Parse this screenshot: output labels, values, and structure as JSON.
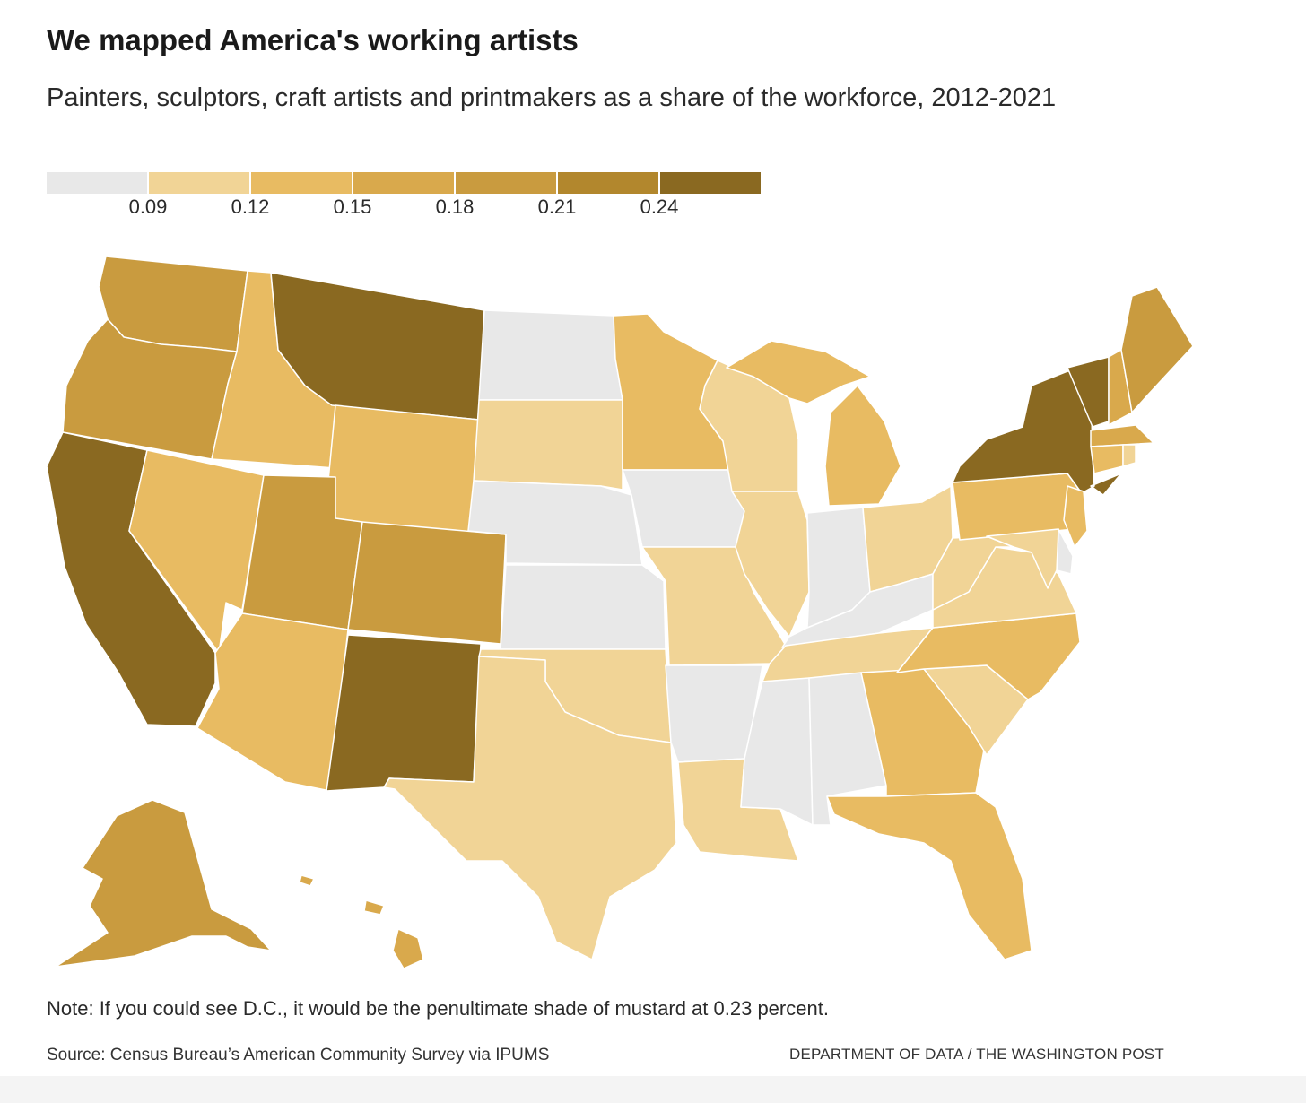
{
  "title": "We mapped America's working artists",
  "subtitle": "Painters, sculptors, craft artists and printmakers as a share of the workforce, 2012-2021",
  "legend": {
    "colors": [
      "#e8e8e8",
      "#f1d496",
      "#e8bb62",
      "#d9a94c",
      "#c99b3f",
      "#b2872d",
      "#8a6921"
    ],
    "ticks": [
      "0.09",
      "0.12",
      "0.15",
      "0.18",
      "0.21",
      "0.24"
    ]
  },
  "states": [
    {
      "name": "WA",
      "bin": 4
    },
    {
      "name": "OR",
      "bin": 4
    },
    {
      "name": "CA",
      "bin": 6
    },
    {
      "name": "ID",
      "bin": 2
    },
    {
      "name": "NV",
      "bin": 2
    },
    {
      "name": "MT",
      "bin": 6
    },
    {
      "name": "WY",
      "bin": 2
    },
    {
      "name": "UT",
      "bin": 4
    },
    {
      "name": "AZ",
      "bin": 2
    },
    {
      "name": "CO",
      "bin": 4
    },
    {
      "name": "NM",
      "bin": 6
    },
    {
      "name": "ND",
      "bin": 0
    },
    {
      "name": "SD",
      "bin": 1
    },
    {
      "name": "NE",
      "bin": 0
    },
    {
      "name": "KS",
      "bin": 0
    },
    {
      "name": "OK",
      "bin": 1
    },
    {
      "name": "TX",
      "bin": 1
    },
    {
      "name": "MN",
      "bin": 2
    },
    {
      "name": "IA",
      "bin": 0
    },
    {
      "name": "MO",
      "bin": 1
    },
    {
      "name": "AR",
      "bin": 0
    },
    {
      "name": "LA",
      "bin": 1
    },
    {
      "name": "WI",
      "bin": 1
    },
    {
      "name": "IL",
      "bin": 1
    },
    {
      "name": "MI",
      "bin": 2
    },
    {
      "name": "IN",
      "bin": 0
    },
    {
      "name": "OH",
      "bin": 1
    },
    {
      "name": "KY",
      "bin": 0
    },
    {
      "name": "TN",
      "bin": 1
    },
    {
      "name": "MS",
      "bin": 0
    },
    {
      "name": "AL",
      "bin": 0
    },
    {
      "name": "GA",
      "bin": 2
    },
    {
      "name": "FL",
      "bin": 2
    },
    {
      "name": "SC",
      "bin": 1
    },
    {
      "name": "NC",
      "bin": 2
    },
    {
      "name": "VA",
      "bin": 1
    },
    {
      "name": "WV",
      "bin": 1
    },
    {
      "name": "PA",
      "bin": 2
    },
    {
      "name": "NY",
      "bin": 6
    },
    {
      "name": "VT",
      "bin": 6
    },
    {
      "name": "NH",
      "bin": 3
    },
    {
      "name": "ME",
      "bin": 4
    },
    {
      "name": "MA",
      "bin": 3
    },
    {
      "name": "CT",
      "bin": 2
    },
    {
      "name": "RI",
      "bin": 1
    },
    {
      "name": "NJ",
      "bin": 2
    },
    {
      "name": "DE",
      "bin": 0
    },
    {
      "name": "MD",
      "bin": 1
    },
    {
      "name": "AK",
      "bin": 4
    },
    {
      "name": "HI",
      "bin": 3
    }
  ],
  "note": "Note: If you could see D.C., it would be the penultimate shade of mustard at 0.23 percent.",
  "source": "Source: Census Bureau’s American Community Survey via IPUMS",
  "credit": "DEPARTMENT OF DATA / THE WASHINGTON POST"
}
